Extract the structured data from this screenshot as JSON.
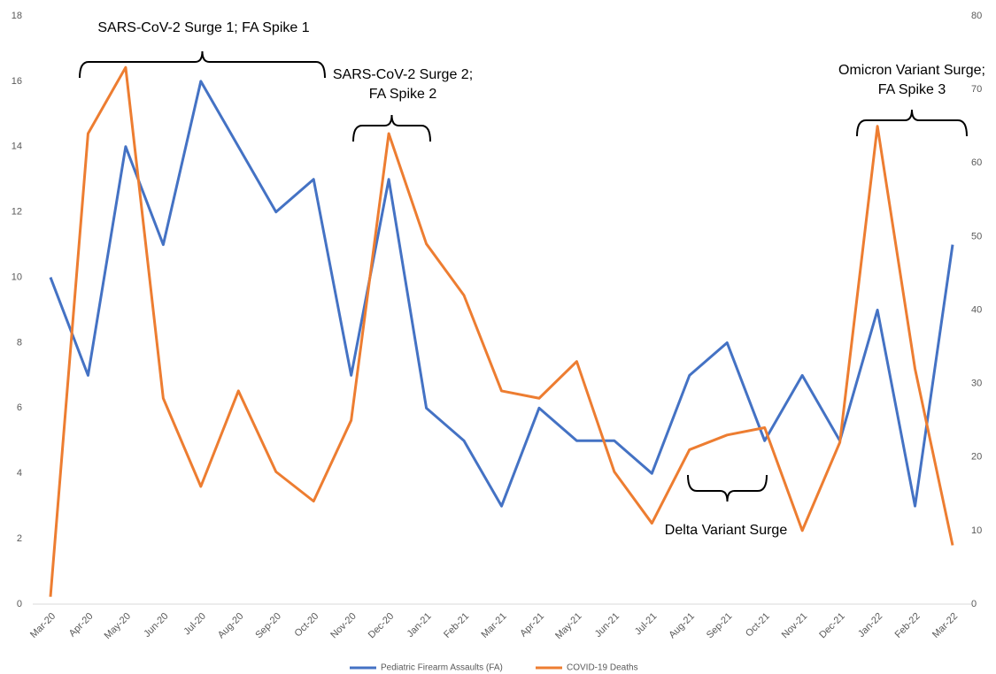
{
  "chart_data": {
    "type": "line",
    "categories": [
      "Mar-20",
      "Apr-20",
      "May-20",
      "Jun-20",
      "Jul-20",
      "Aug-20",
      "Sep-20",
      "Oct-20",
      "Nov-20",
      "Dec-20",
      "Jan-21",
      "Feb-21",
      "Mar-21",
      "Apr-21",
      "May-21",
      "Jun-21",
      "Jul-21",
      "Aug-21",
      "Sep-21",
      "Oct-21",
      "Nov-21",
      "Dec-21",
      "Jan-22",
      "Feb-22",
      "Mar-22"
    ],
    "series": [
      {
        "name": "Pediatric Firearm Assaults (FA)",
        "color": "#4472c4",
        "axis": "y",
        "values": [
          10,
          7,
          14,
          11,
          16,
          14,
          12,
          13,
          7,
          13,
          6,
          5,
          3,
          6,
          5,
          5,
          4,
          7,
          8,
          5,
          7,
          5,
          9,
          3,
          11
        ]
      },
      {
        "name": "COVID-19 Deaths",
        "color": "#ed7d31",
        "axis": "y2",
        "values": [
          1,
          64,
          73,
          28,
          16,
          29,
          18,
          14,
          25,
          64,
          49,
          42,
          29,
          28,
          33,
          18,
          11,
          21,
          23,
          24,
          10,
          22,
          65,
          32,
          8
        ]
      }
    ],
    "ylim": [
      0,
      18
    ],
    "yticks": [
      0,
      2,
      4,
      6,
      8,
      10,
      12,
      14,
      16,
      18
    ],
    "y2lim": [
      0,
      80
    ],
    "y2ticks": [
      0,
      10,
      20,
      30,
      40,
      50,
      60,
      70,
      80
    ],
    "grid": false,
    "legend": "bottom",
    "annotations": [
      [
        "SARS-CoV-2 Surge 1; FA Spike 1"
      ],
      [
        "SARS-CoV-2 Surge 2;",
        "FA Spike 2"
      ],
      [
        "Delta Variant Surge"
      ],
      [
        "Omicron Variant Surge;",
        "FA Spike 3"
      ]
    ]
  }
}
